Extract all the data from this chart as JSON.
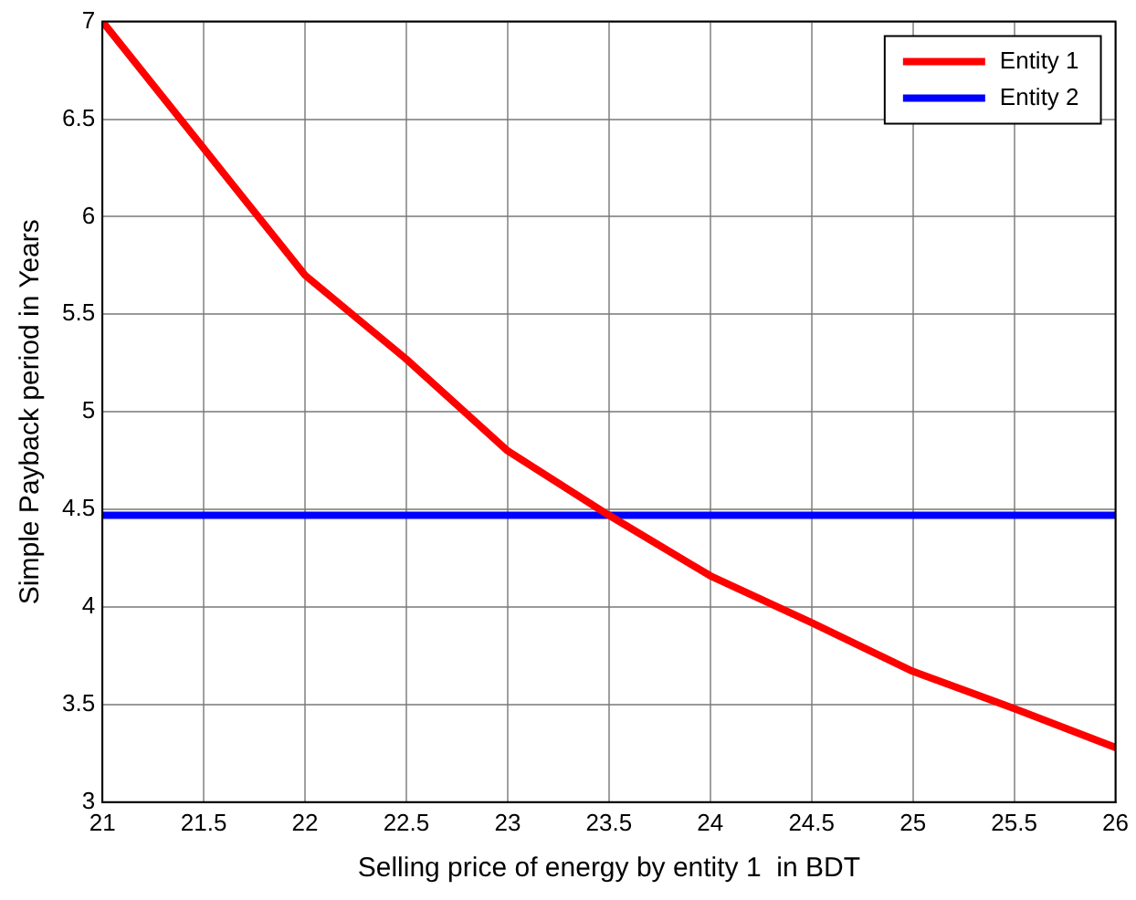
{
  "chart_data": {
    "type": "line",
    "xlabel": "Selling price of energy by entity 1  in BDT",
    "ylabel": "Simple Payback period in Years",
    "x": [
      21,
      21.5,
      22,
      22.5,
      23,
      23.5,
      24,
      24.5,
      25,
      25.5,
      26
    ],
    "series": [
      {
        "name": "Entity 1",
        "color": "#ff0000",
        "values": [
          7,
          6.35,
          5.7,
          5.27,
          4.8,
          4.47,
          4.16,
          3.92,
          3.67,
          3.48,
          3.28
        ]
      },
      {
        "name": "Entity 2",
        "color": "#0000ff",
        "values": [
          4.47,
          4.47,
          4.47,
          4.47,
          4.47,
          4.47,
          4.47,
          4.47,
          4.47,
          4.47,
          4.47
        ]
      }
    ],
    "xlim": [
      21,
      26
    ],
    "xticks": [
      21,
      21.5,
      22,
      22.5,
      23,
      23.5,
      24,
      24.5,
      25,
      25.5,
      26
    ],
    "ylim": [
      3,
      7
    ],
    "yticks": [
      3,
      3.5,
      4,
      4.5,
      5,
      5.5,
      6,
      6.5,
      7
    ],
    "grid": true,
    "legend": "top right",
    "marker": "none",
    "line_style": "solid"
  }
}
